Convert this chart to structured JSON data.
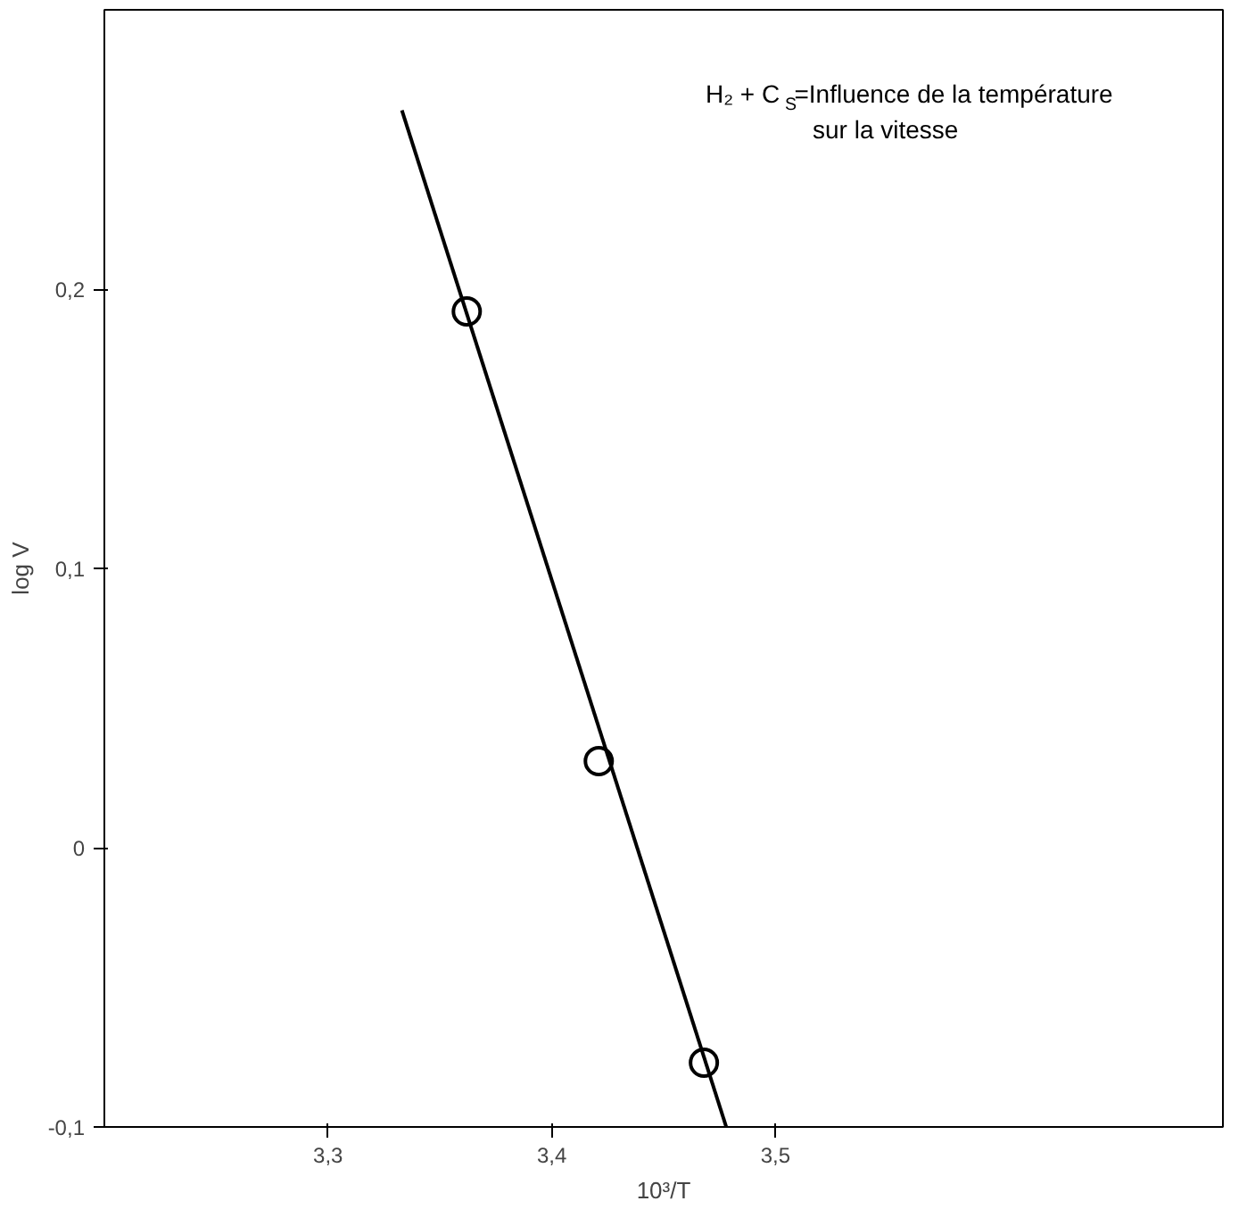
{
  "chart_data": {
    "type": "scatter",
    "title": "H₂ + C$_{S}$=Influence de la température\nsur la vitesse",
    "xlabel": "10³/T",
    "ylabel": "log V",
    "series": [
      {
        "color": "#000000",
        "marker": "circle",
        "x": [
          3.362,
          3.421,
          3.468
        ],
        "values": [
          0.192,
          0.031,
          -0.077
        ]
      },
      {
        "type": "line",
        "color": "#000000",
        "marker": "none",
        "x": [
          3.333,
          3.478
        ],
        "values": [
          0.264,
          -0.1
        ]
      }
    ],
    "xlim": [
      3.2,
      3.7
    ],
    "ylim": [
      -0.1,
      0.3
    ],
    "xticks": [
      {
        "value": 3.3,
        "label": "3,3"
      },
      {
        "value": 3.4,
        "label": "3,4"
      },
      {
        "value": 3.5,
        "label": "3,5"
      }
    ],
    "yticks": [
      {
        "value": -0.1,
        "label": "-0,1"
      },
      {
        "value": 0,
        "label": "0"
      },
      {
        "value": 0.1,
        "label": "0,1"
      },
      {
        "value": 0.2,
        "label": "0,2"
      }
    ],
    "grid": false
  }
}
